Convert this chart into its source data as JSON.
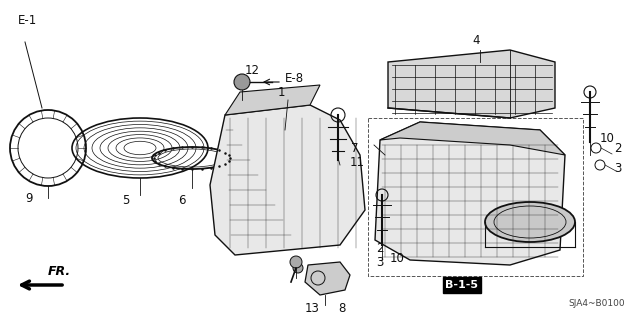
{
  "bg_color": "#ffffff",
  "diagram_code": "SJA4~B0100",
  "ref_label": "B-1-5",
  "fr_label": "FR.",
  "line_color": "#111111",
  "text_color": "#111111"
}
